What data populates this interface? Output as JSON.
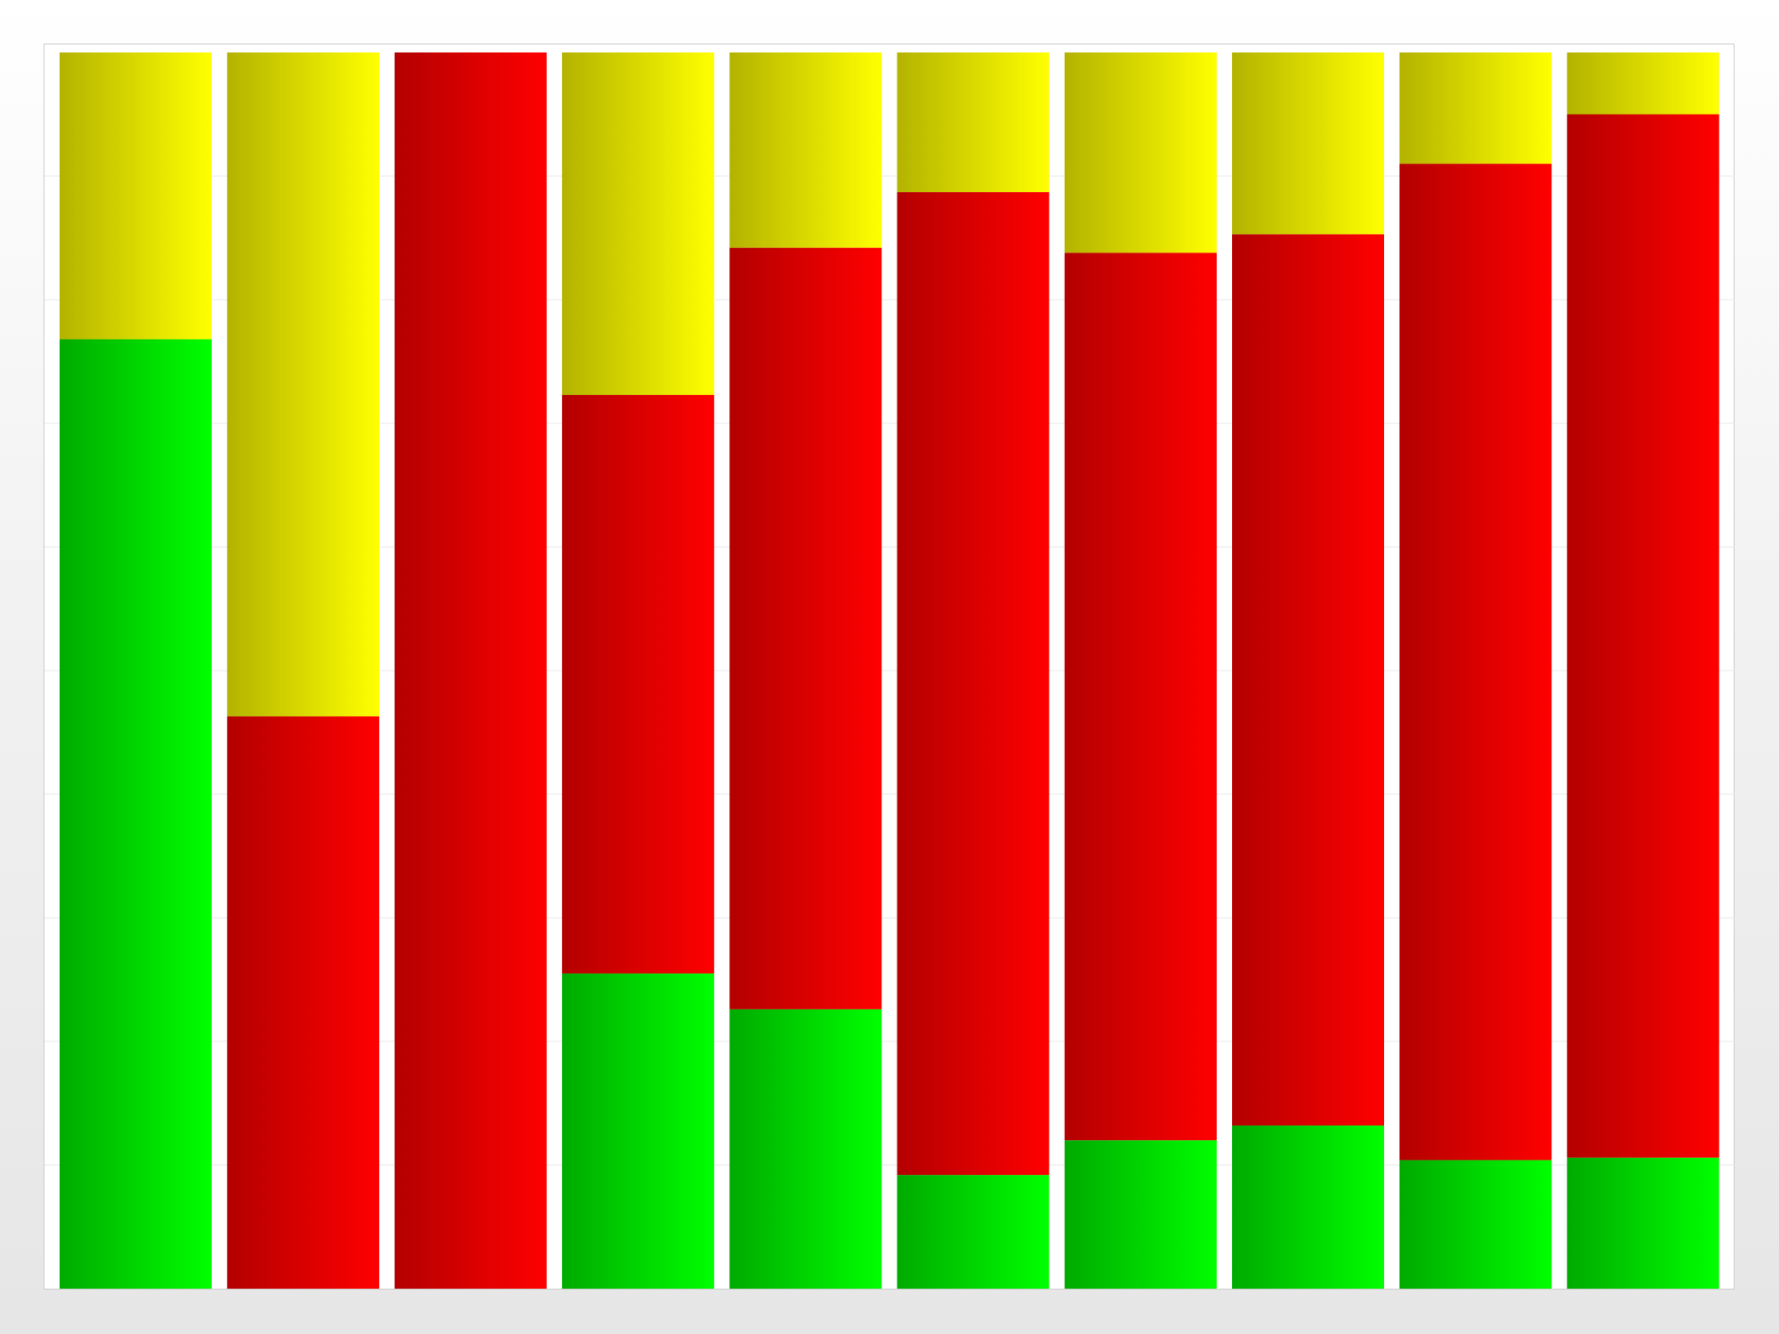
{
  "chart_data": {
    "type": "bar",
    "stacked": true,
    "normalized": true,
    "title": "",
    "xlabel": "",
    "ylabel": "",
    "ylim": [
      0,
      100
    ],
    "grid": true,
    "legend": "none",
    "categories": [
      "",
      "",
      "",
      "",
      "",
      "",
      "",
      "",
      "",
      ""
    ],
    "series": [
      {
        "color_dark": "#00aa00",
        "color_light": "#00ff00",
        "values": [
          76.8,
          0,
          0,
          25.5,
          22.6,
          9.2,
          12.0,
          13.2,
          10.4,
          10.6
        ]
      },
      {
        "color_dark": "#b30000",
        "color_light": "#ff0000",
        "values": [
          0,
          46.3,
          100,
          46.8,
          61.6,
          79.5,
          71.8,
          72.1,
          80.6,
          84.4
        ]
      },
      {
        "color_dark": "#b3b300",
        "color_light": "#ffff00",
        "values": [
          23.2,
          53.7,
          0,
          27.7,
          15.8,
          11.3,
          16.2,
          14.7,
          9.0,
          5.0
        ]
      }
    ]
  }
}
